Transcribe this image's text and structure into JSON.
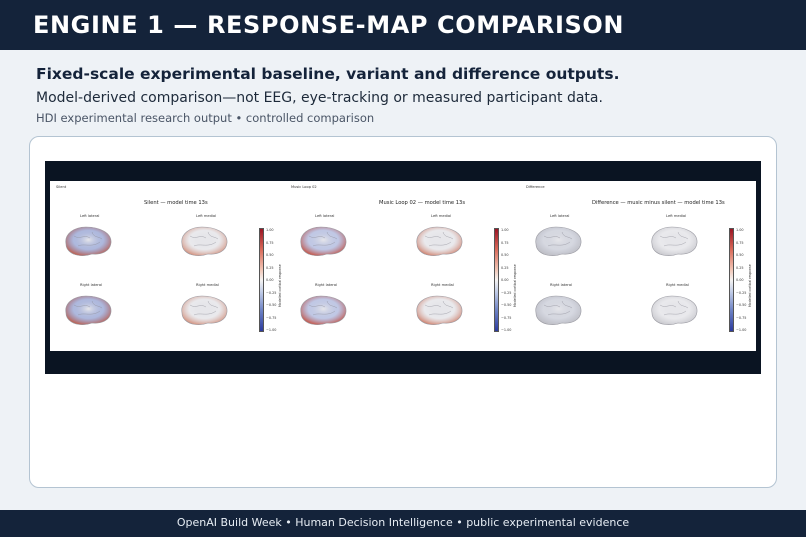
{
  "header": {
    "title": "ENGINE 1 — RESPONSE-MAP COMPARISON"
  },
  "intro": {
    "subtitle": "Fixed-scale experimental baseline, variant and difference outputs.",
    "description": "Model-derived comparison—not EEG, eye-tracking or measured participant data.",
    "meta": "HDI experimental research output • controlled comparison"
  },
  "figure": {
    "panels": [
      {
        "corner_label": "Silent",
        "title": "Silent — model time 13s",
        "views": [
          "Left lateral",
          "Left medial",
          "Right lateral",
          "Right medial"
        ],
        "colorbar_label": "Modelled cortical response"
      },
      {
        "corner_label": "Music Loop 02",
        "title": "Music Loop 02 — model time 13s",
        "views": [
          "Left lateral",
          "Left medial",
          "Right lateral",
          "Right medial"
        ],
        "colorbar_label": "Modelled cortical response"
      },
      {
        "corner_label": "Difference",
        "title": "Difference — music minus silent — model time 13s",
        "views": [
          "Left lateral",
          "Left medial",
          "Right lateral",
          "Right medial"
        ],
        "colorbar_label": "Modelled cortical response"
      }
    ],
    "colorbar_ticks": [
      "1.00",
      "0.75",
      "0.50",
      "0.25",
      "0.00",
      "−0.25",
      "−0.50",
      "−0.75",
      "−1.00"
    ],
    "colors": {
      "positive": "#c0392b",
      "neutral": "#e9e9ec",
      "negative": "#3b4fb0"
    }
  },
  "footer": {
    "text": "OpenAI Build Week • Human Decision Intelligence • public experimental evidence"
  }
}
